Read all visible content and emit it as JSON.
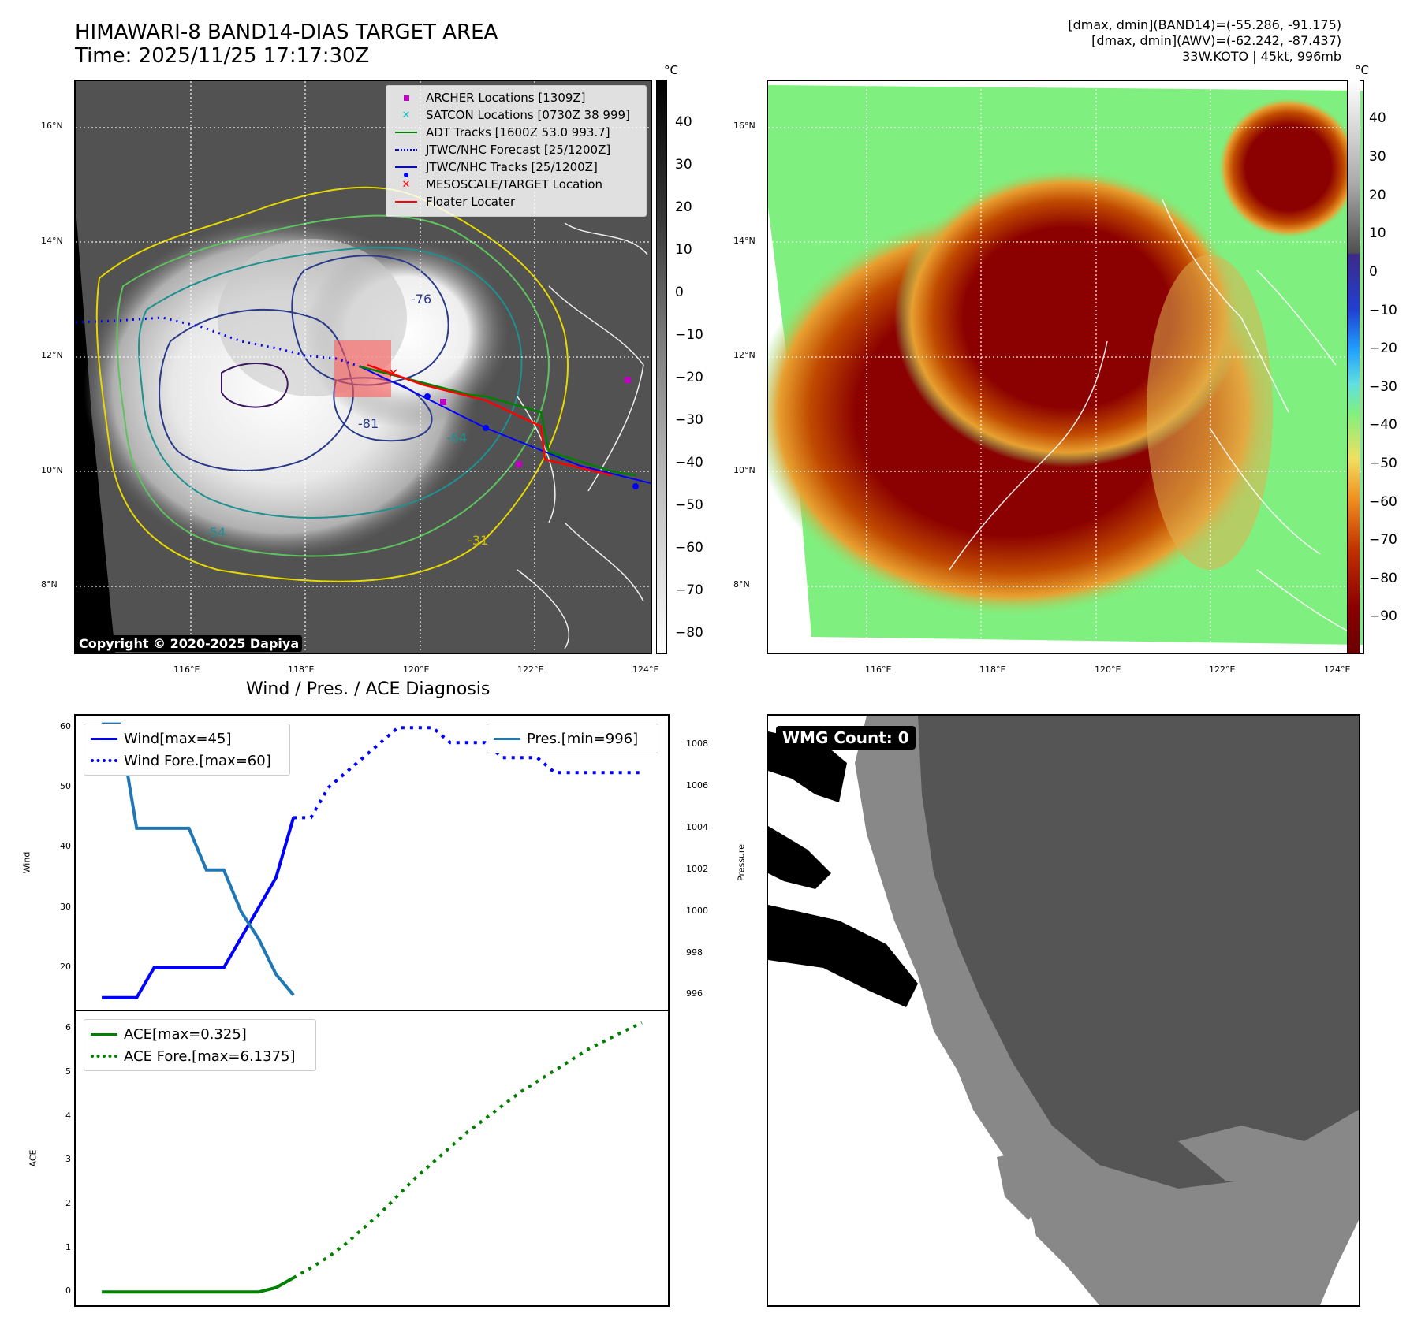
{
  "header": {
    "title_line1": "HIMAWARI-8 BAND14-DIAS TARGET AREA",
    "title_line2": "Time: 2025/11/25 17:17:30Z",
    "info_line1": "[dmax, dmin](BAND14)=(-55.286, -91.175)",
    "info_line2": "[dmax, dmin](AWV)=(-62.242, -87.437)",
    "info_line3": "33W.KOTO | 45kt, 996mb"
  },
  "map": {
    "lon_ticks": [
      "116°E",
      "118°E",
      "120°E",
      "122°E",
      "124°E"
    ],
    "lat_ticks": [
      "16°N",
      "14°N",
      "12°N",
      "10°N",
      "8°N"
    ],
    "copyright": "Copyright © 2020-2025 Dapiya",
    "contour_labels": [
      "-76",
      "-81",
      "-54",
      "-64",
      "-31"
    ],
    "colors": {
      "archer": "#c000c0",
      "satcon": "#17becf",
      "adt": "#008000",
      "forecast": "#0000ff",
      "tracks": "#0000ff",
      "target": "#ff0000",
      "floater": "#ff0000"
    },
    "legend": [
      {
        "label": "ARCHER Locations [1309Z]",
        "symbol": "square"
      },
      {
        "label": "SATCON Locations [0730Z 38 999]",
        "symbol": "x-cyan"
      },
      {
        "label": "ADT Tracks [1600Z 53.0 993.7]",
        "symbol": "line-green"
      },
      {
        "label": "JTWC/NHC Forecast [25/1200Z]",
        "symbol": "dotted-blue"
      },
      {
        "label": "JTWC/NHC Tracks [25/1200Z]",
        "symbol": "line-dot-blue"
      },
      {
        "label": "MESOSCALE/TARGET Location",
        "symbol": "x-red"
      },
      {
        "label": "Floater Locater",
        "symbol": "line-red"
      }
    ]
  },
  "colorbar_left": {
    "unit": "°C",
    "ticks": [
      "40",
      "30",
      "20",
      "10",
      "0",
      "−10",
      "−20",
      "−30",
      "−40",
      "−50",
      "−60",
      "−70",
      "−80"
    ]
  },
  "colorbar_right": {
    "unit": "°C",
    "ticks": [
      "40",
      "30",
      "20",
      "10",
      "0",
      "−10",
      "−20",
      "−30",
      "−40",
      "−50",
      "−60",
      "−70",
      "−80",
      "−90"
    ]
  },
  "diag": {
    "title": "Wind / Pres. / ACE Diagnosis",
    "wind_ylabel": "Wind",
    "pres_ylabel": "Pressure",
    "ace_ylabel": "ACE",
    "wind_ticks": [
      "60",
      "50",
      "40",
      "30",
      "20"
    ],
    "pres_ticks": [
      "1008",
      "1006",
      "1004",
      "1002",
      "1000",
      "998",
      "996"
    ],
    "ace_ticks": [
      "6",
      "5",
      "4",
      "3",
      "2",
      "1",
      "0"
    ],
    "legend_wind": "Wind[max=45]",
    "legend_wind_fore": "Wind Fore.[max=60]",
    "legend_pres": "Pres.[min=996]",
    "legend_ace": "ACE[max=0.325]",
    "legend_ace_fore": "ACE Fore.[max=6.1375]"
  },
  "wmg": {
    "label": "WMG Count: 0"
  },
  "chart_data": [
    {
      "type": "line",
      "title": "Wind / Pres. / ACE Diagnosis",
      "ylabel": "Wind",
      "ylim": [
        13,
        62
      ],
      "x": [
        0,
        1,
        2,
        3,
        4,
        5,
        6,
        7,
        8,
        9,
        10,
        11,
        12,
        13,
        14,
        15,
        16,
        17,
        18,
        19,
        20,
        21,
        22,
        23,
        24,
        25,
        26,
        27,
        28,
        29,
        30,
        31
      ],
      "series": [
        {
          "name": "Wind[max=45]",
          "x": [
            0,
            1,
            2,
            3,
            4,
            5,
            6,
            7,
            8,
            9,
            10,
            11
          ],
          "values": [
            15,
            15,
            15,
            20,
            20,
            20,
            20,
            20,
            25,
            30,
            35,
            45
          ],
          "color": "#0000ff",
          "style": "solid"
        },
        {
          "name": "Wind Fore.[max=60]",
          "x": [
            11,
            12,
            13,
            14,
            15,
            16,
            17,
            18,
            19,
            20,
            21,
            22,
            23,
            24,
            25,
            26,
            27,
            28,
            29,
            30,
            31
          ],
          "values": [
            45,
            45,
            50,
            52.5,
            55,
            57.5,
            60,
            60,
            60,
            57.5,
            57.5,
            57.5,
            55,
            55,
            55,
            52.5,
            52.5,
            52.5,
            52.5,
            52.5,
            52.5
          ],
          "color": "#0000ff",
          "style": "dotted"
        }
      ]
    },
    {
      "type": "line",
      "ylabel": "Pressure",
      "ylim": [
        995.3,
        1009.4
      ],
      "series": [
        {
          "name": "Pres.[min=996]",
          "x": [
            0,
            1,
            2,
            3,
            4,
            5,
            6,
            7,
            8,
            9,
            10,
            11
          ],
          "values": [
            1009,
            1009,
            1004,
            1004,
            1004,
            1004,
            1002,
            1002,
            1000,
            998.7,
            997,
            996
          ],
          "color": "#1f77b4",
          "style": "solid"
        }
      ]
    },
    {
      "type": "line",
      "ylabel": "ACE",
      "ylim": [
        -0.3,
        6.4
      ],
      "series": [
        {
          "name": "ACE[max=0.325]",
          "x": [
            0,
            1,
            2,
            3,
            4,
            5,
            6,
            7,
            8,
            9,
            10,
            11
          ],
          "values": [
            0,
            0,
            0,
            0,
            0,
            0,
            0,
            0,
            0,
            0,
            0.1,
            0.325
          ],
          "color": "#008000",
          "style": "solid"
        },
        {
          "name": "ACE Fore.[max=6.1375]",
          "x": [
            11,
            12,
            13,
            14,
            15,
            16,
            17,
            18,
            19,
            20,
            21,
            22,
            23,
            24,
            25,
            26,
            27,
            28,
            29,
            30,
            31
          ],
          "values": [
            0.325,
            0.55,
            0.8,
            1.1,
            1.45,
            1.8,
            2.2,
            2.6,
            2.95,
            3.3,
            3.65,
            3.95,
            4.25,
            4.55,
            4.8,
            5.05,
            5.3,
            5.55,
            5.75,
            5.95,
            6.1375
          ],
          "color": "#008000",
          "style": "dotted"
        }
      ]
    }
  ]
}
